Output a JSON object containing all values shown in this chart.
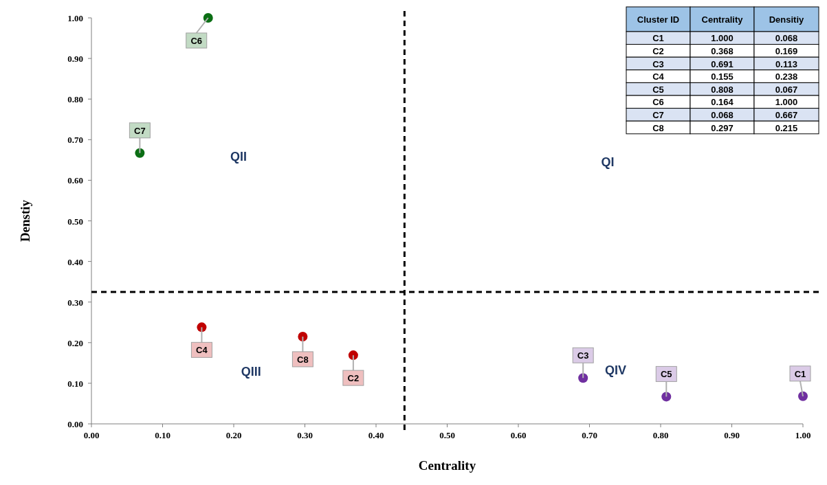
{
  "chart_data": [
    {
      "type": "scatter",
      "xlabel": "Centrality",
      "ylabel": "Denstiy",
      "xlim": [
        0,
        1
      ],
      "ylim": [
        0,
        1
      ],
      "xticks": [
        {
          "value": 0,
          "label": "0.00"
        },
        {
          "value": 0.1,
          "label": "0.10"
        },
        {
          "value": 0.2,
          "label": "0.20"
        },
        {
          "value": 0.3,
          "label": "0.30"
        },
        {
          "value": 0.4,
          "label": "0.40"
        },
        {
          "value": 0.5,
          "label": "0.50"
        },
        {
          "value": 0.6,
          "label": "0.60"
        },
        {
          "value": 0.7,
          "label": "0.70"
        },
        {
          "value": 0.8,
          "label": "0.80"
        },
        {
          "value": 0.9,
          "label": "0.90"
        },
        {
          "value": 1,
          "label": "1.00"
        }
      ],
      "yticks": [
        {
          "value": 0,
          "label": "0.00"
        },
        {
          "value": 0.1,
          "label": "0.10"
        },
        {
          "value": 0.2,
          "label": "0.20"
        },
        {
          "value": 0.3,
          "label": "0.30"
        },
        {
          "value": 0.4,
          "label": "0.40"
        },
        {
          "value": 0.5,
          "label": "0.50"
        },
        {
          "value": 0.6,
          "label": "0.60"
        },
        {
          "value": 0.7,
          "label": "0.70"
        },
        {
          "value": 0.8,
          "label": "0.80"
        },
        {
          "value": 0.9,
          "label": "0.90"
        },
        {
          "value": 1,
          "label": "1.00"
        }
      ],
      "marker": "circle",
      "grid": false,
      "series": [
        {
          "color": "#0b6e14",
          "x": [
            0.164,
            0.068
          ],
          "values": [
            1.0,
            0.667
          ]
        },
        {
          "color": "#c00000",
          "x": [
            0.155,
            0.297,
            0.368
          ],
          "values": [
            0.238,
            0.215,
            0.169
          ]
        },
        {
          "color": "#7030a0",
          "x": [
            0.691,
            0.808,
            1.0
          ],
          "values": [
            0.113,
            0.067,
            0.068
          ]
        }
      ],
      "ref_lines": [
        {
          "axis": "x",
          "value": 0.44,
          "line_style": "dashed",
          "color": "#000000"
        },
        {
          "axis": "y",
          "value": 0.325,
          "line_style": "dashed",
          "color": "#000000"
        }
      ],
      "annotations": [
        {
          "text": "C1",
          "x": 1.0,
          "y": 0.068
        },
        {
          "text": "C2",
          "x": 0.368,
          "y": 0.169
        },
        {
          "text": "C3",
          "x": 0.691,
          "y": 0.113
        },
        {
          "text": "C4",
          "x": 0.155,
          "y": 0.238
        },
        {
          "text": "C5",
          "x": 0.808,
          "y": 0.067
        },
        {
          "text": "C6",
          "x": 0.164,
          "y": 1.0
        },
        {
          "text": "C7",
          "x": 0.068,
          "y": 0.667
        },
        {
          "text": "C8",
          "x": 0.297,
          "y": 0.215
        },
        "QI",
        "QII",
        "QIII",
        "QIV"
      ]
    },
    {
      "type": "other",
      "xlabel": "Cluster ID",
      "categories": [
        "C1",
        "C2",
        "C3",
        "C4",
        "C5",
        "C6",
        "C7",
        "C8"
      ],
      "data_labels": true,
      "series": [
        {
          "name": "Centrality",
          "colors": [
            "#dae3f3",
            "#ffffff",
            "#dae3f3",
            "#ffffff",
            "#dae3f3",
            "#ffffff",
            "#dae3f3",
            "#ffffff"
          ],
          "values": [
            1.0,
            0.368,
            0.691,
            0.155,
            0.808,
            0.164,
            0.068,
            0.297
          ],
          "value_labels": [
            "1.000",
            "0.368",
            "0.691",
            "0.155",
            "0.808",
            "0.164",
            "0.068",
            "0.297"
          ]
        },
        {
          "name": "Densitiy",
          "colors": [
            "#dae3f3",
            "#ffffff",
            "#dae3f3",
            "#ffffff",
            "#dae3f3",
            "#ffffff",
            "#dae3f3",
            "#ffffff"
          ],
          "values": [
            0.068,
            0.169,
            0.113,
            0.238,
            0.067,
            1.0,
            0.667,
            0.215
          ],
          "value_labels": [
            "0.068",
            "0.169",
            "0.113",
            "0.238",
            "0.067",
            "1.000",
            "0.667",
            "0.215"
          ]
        }
      ]
    }
  ]
}
